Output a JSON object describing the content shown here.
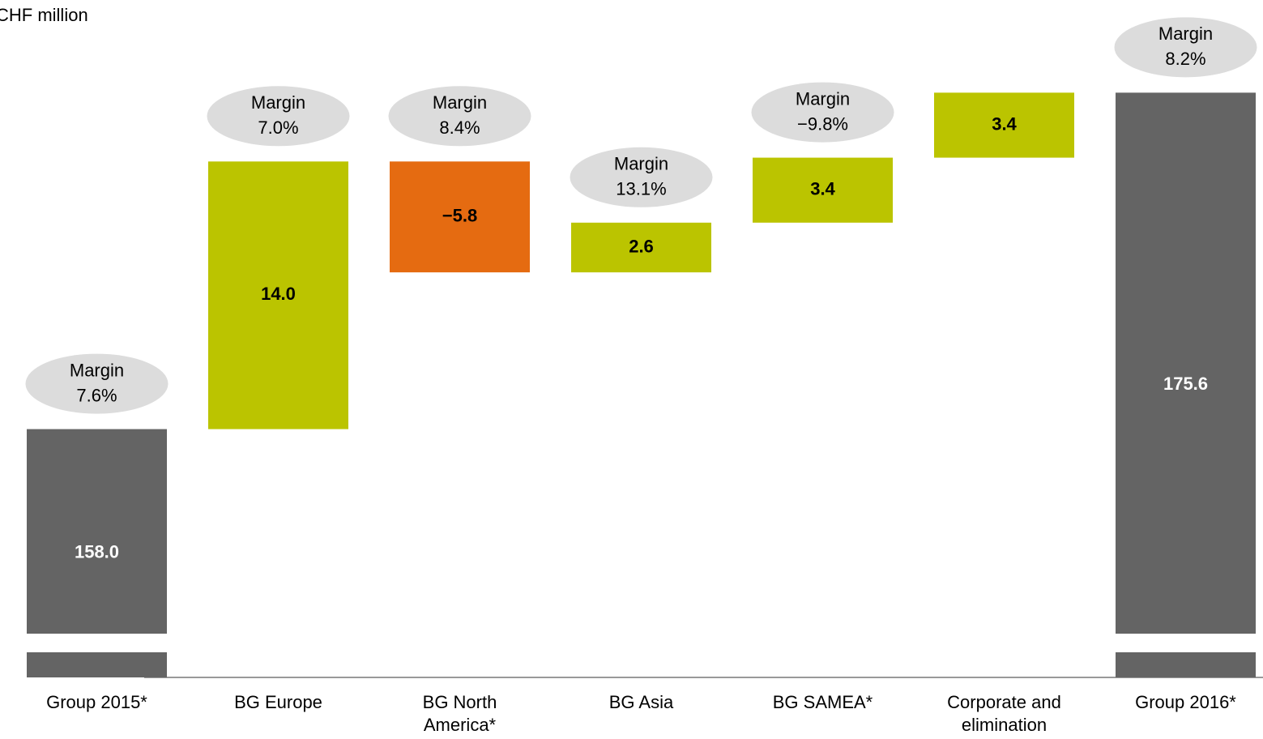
{
  "chart_data": {
    "type": "waterfall",
    "title": "CHF million",
    "categories": [
      "Group 2015*",
      "BG Europe",
      "BG North America*",
      "BG Asia",
      "BG SAMEA*",
      "Corporate and elimination",
      "Group 2016*"
    ],
    "values": [
      158.0,
      14.0,
      -5.8,
      2.6,
      3.4,
      3.4,
      175.6
    ],
    "value_labels": [
      "158.0",
      "14.0",
      "−5.8",
      "2.6",
      "3.4",
      "3.4",
      "175.6"
    ],
    "margin_label": "Margin",
    "margins": [
      "7.6%",
      "7.0%",
      "8.4%",
      "13.1%",
      "−9.8%",
      null,
      "8.2%"
    ],
    "colors": {
      "total": "#646464",
      "increase": "#bbc400",
      "decrease": "#e56b11"
    },
    "ylim": [
      147.3,
      179.6
    ]
  }
}
